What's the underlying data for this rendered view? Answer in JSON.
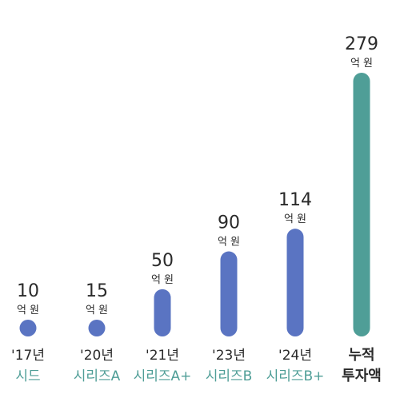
{
  "chart_data": {
    "type": "bar",
    "categories": [
      "'17년 시드",
      "'20년 시리즈A",
      "'21년 시리즈A+",
      "'23년 시리즈B",
      "'24년 시리즈B+",
      "누적 투자액"
    ],
    "bars": [
      {
        "value": 10,
        "value_label": "10",
        "unit": "억 원",
        "year": "'17년",
        "round": "시드",
        "color": "#5a74c2"
      },
      {
        "value": 15,
        "value_label": "15",
        "unit": "억 원",
        "year": "'20년",
        "round": "시리즈A",
        "color": "#5a74c2"
      },
      {
        "value": 50,
        "value_label": "50",
        "unit": "억 원",
        "year": "'21년",
        "round": "시리즈A+",
        "color": "#5a74c2"
      },
      {
        "value": 90,
        "value_label": "90",
        "unit": "억 원",
        "year": "'23년",
        "round": "시리즈B",
        "color": "#5a74c2"
      },
      {
        "value": 114,
        "value_label": "114",
        "unit": "억 원",
        "year": "'24년",
        "round": "시리즈B+",
        "color": "#5a74c2"
      },
      {
        "value": 279,
        "value_label": "279",
        "unit": "억 원",
        "year": "누적",
        "round": "투자액",
        "color": "#4f9e97",
        "total": true
      }
    ],
    "round_label_color": "#4f9e97",
    "ylim": [
      0,
      279
    ],
    "grid": false,
    "legend": "none"
  }
}
